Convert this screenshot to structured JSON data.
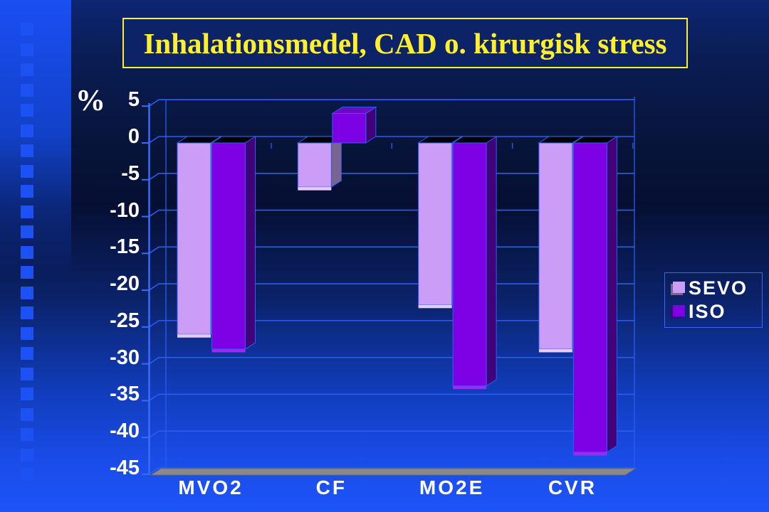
{
  "title": {
    "text": "Inhalationsmedel, CAD o. kirurgisk stress"
  },
  "colors": {
    "title_text": "#ffef2e",
    "title_border": "#ffee2a",
    "title_fill": "#0d2368",
    "gridline": "#2b5cf0",
    "axis": "#3b6cf8",
    "bar_outline": "#2e5df2",
    "floor": "#8a8a8a",
    "label_text": "#ffffff",
    "background_top": "#0a1c52",
    "background_bottom": "#1d55f8",
    "sidebar_square": "#1c52f3"
  },
  "chart_data": {
    "type": "bar",
    "style": "3d-column",
    "title": "Inhalationsmedel, CAD o. kirurgisk stress",
    "categories": [
      "MVO2",
      "CF",
      "MO2E",
      "CVR"
    ],
    "series": [
      {
        "name": "SEVO",
        "values": [
          -26,
          -6,
          -22,
          -28
        ],
        "front_color": "#cc9df6",
        "side_color": "#79638f",
        "bottom_color": "#e7ccff",
        "top_color_negative": "#000000",
        "top_color_positive": "#b684e8"
      },
      {
        "name": "ISO",
        "values": [
          -28,
          4,
          -33,
          -42
        ],
        "front_color": "#7e00e4",
        "side_color": "#410379",
        "bottom_color": "#9b2bf2",
        "top_color_negative": "#000000",
        "top_color_positive": "#6d0ac0"
      }
    ],
    "xlabel": "",
    "ylabel": "%",
    "yticks": [
      5,
      0,
      -5,
      -10,
      -15,
      -20,
      -25,
      -30,
      -35,
      -40,
      -45
    ],
    "ylim": [
      -45,
      5
    ],
    "grid": true,
    "legend_position": "right",
    "legend": [
      "SEVO",
      "ISO"
    ]
  }
}
